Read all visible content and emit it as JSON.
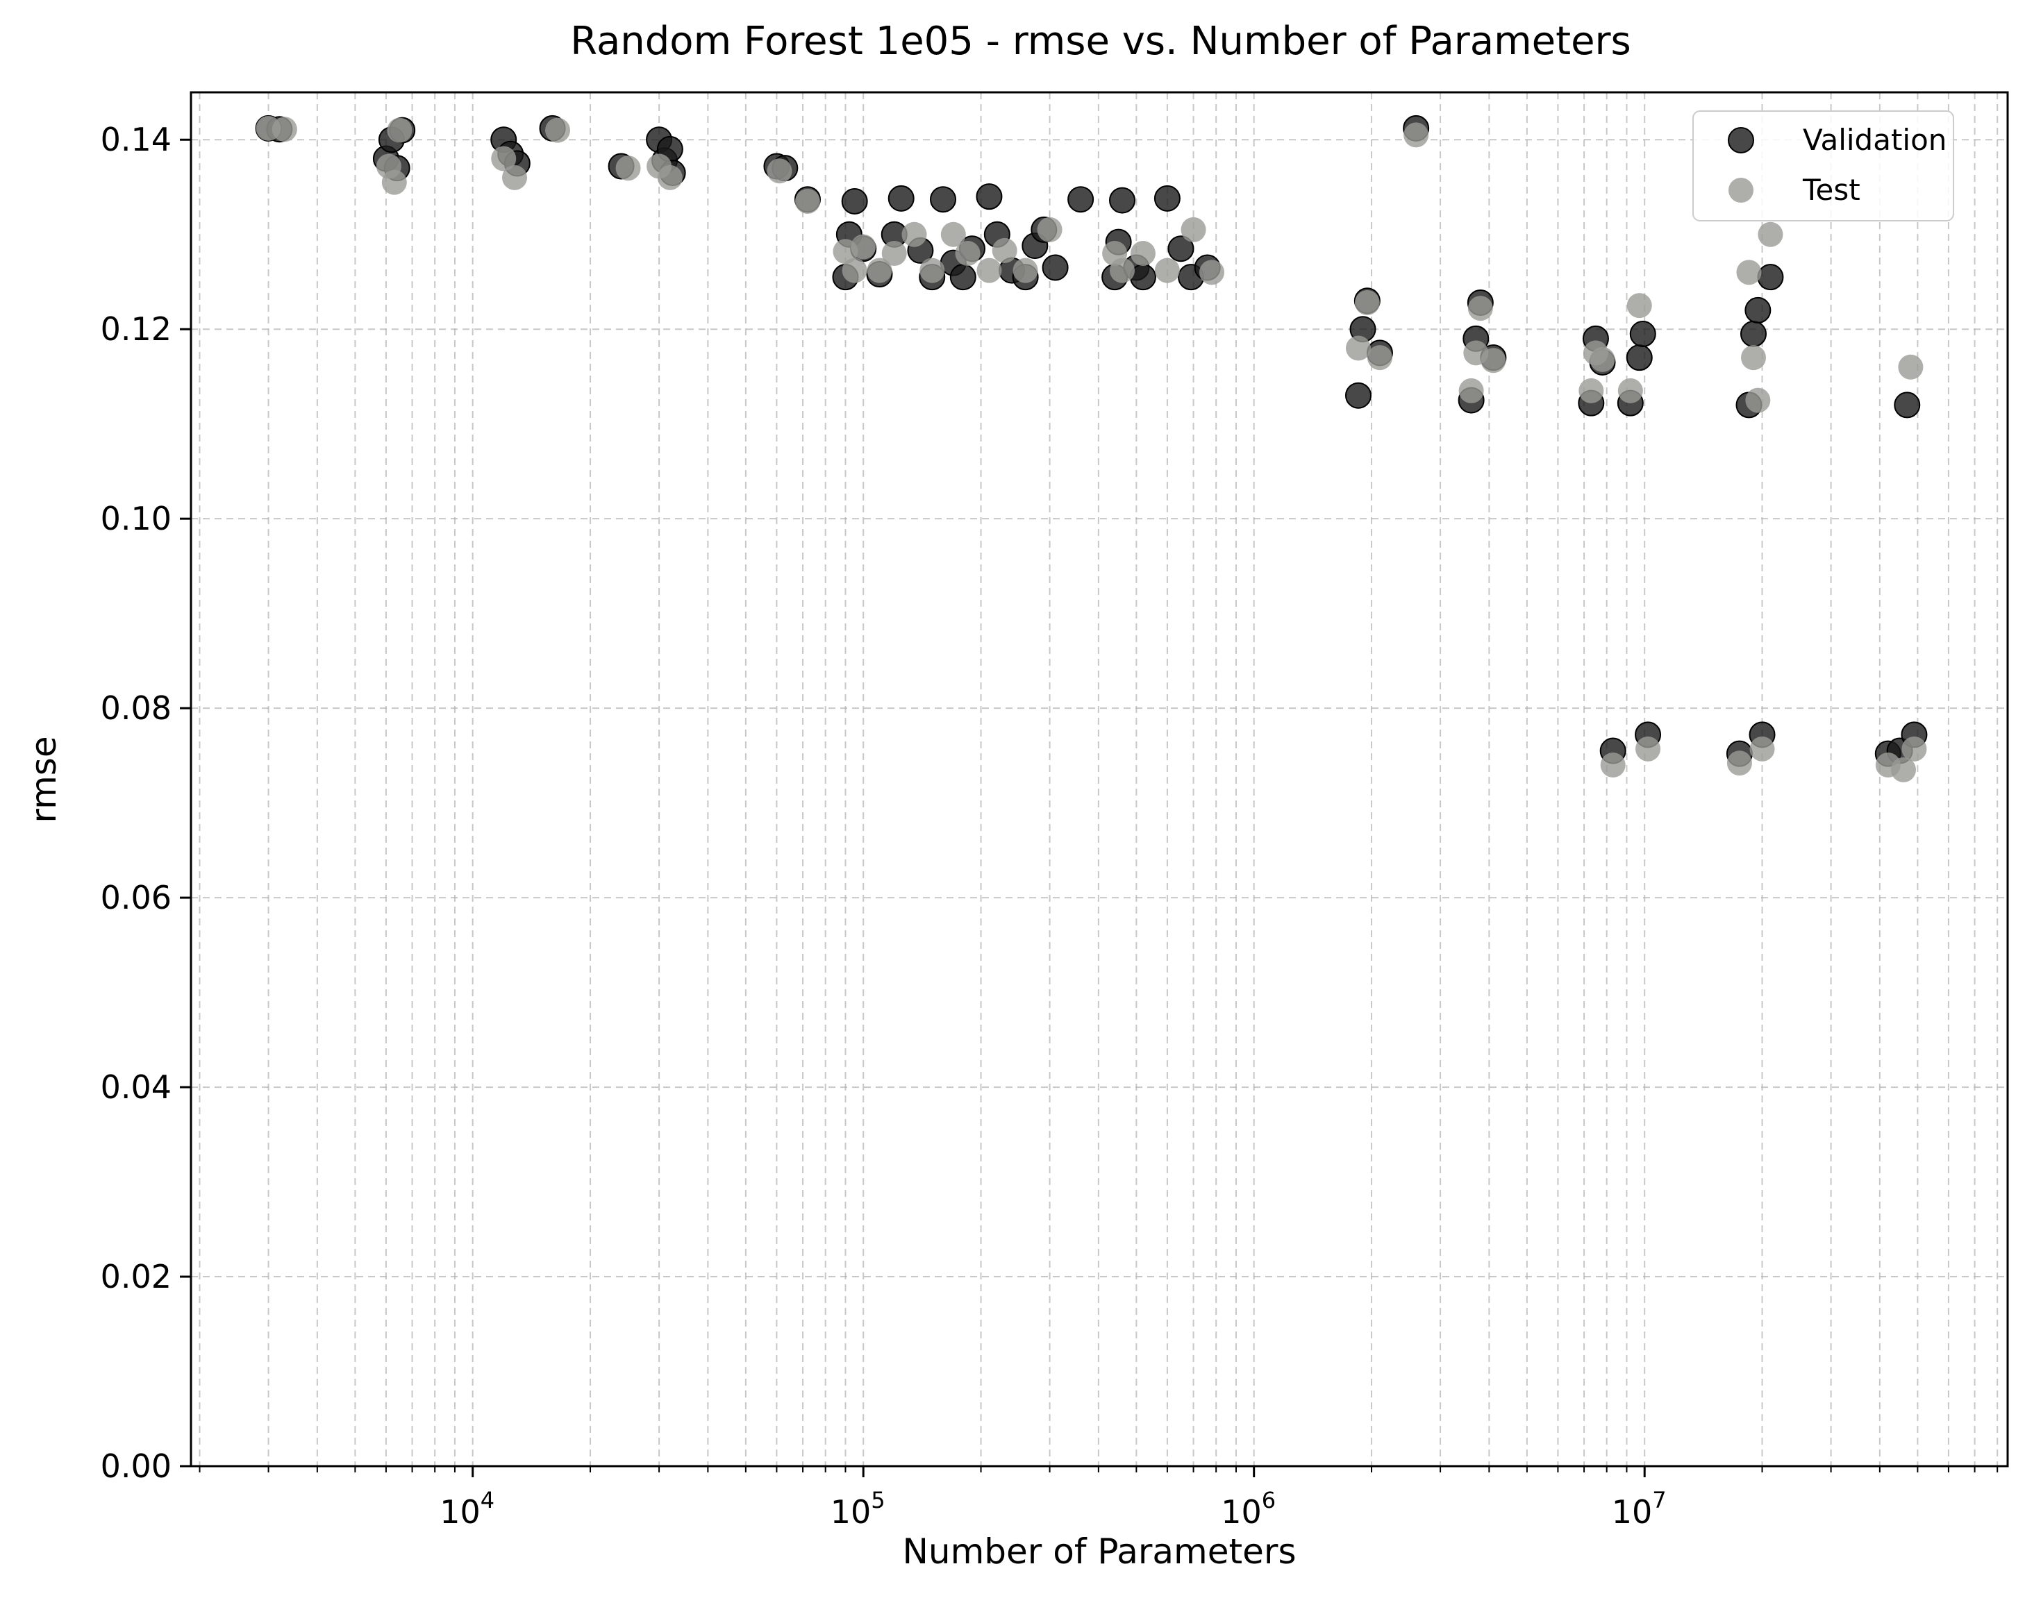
{
  "chart_data": {
    "type": "scatter",
    "title": "Random Forest 1e05 - rmse vs. Number of Parameters",
    "xlabel": "Number of Parameters",
    "ylabel": "rmse",
    "xscale": "log",
    "xlim": [
      1900,
      85000000
    ],
    "ylim": [
      0,
      0.145
    ],
    "grid": true,
    "legend_position": "top-right",
    "x_ticks": [
      {
        "value": 10000,
        "base": "10",
        "exp": "4"
      },
      {
        "value": 100000,
        "base": "10",
        "exp": "5"
      },
      {
        "value": 1000000,
        "base": "10",
        "exp": "6"
      },
      {
        "value": 10000000,
        "base": "10",
        "exp": "7"
      }
    ],
    "y_ticks": [
      "0.00",
      "0.02",
      "0.04",
      "0.06",
      "0.08",
      "0.10",
      "0.12",
      "0.14"
    ],
    "series": [
      {
        "name": "Validation",
        "color": "#1a1a1a",
        "x": [
          3000,
          3200,
          6000,
          6200,
          6400,
          6600,
          12000,
          12500,
          13000,
          16000,
          24000,
          30000,
          31000,
          32000,
          32500,
          60000,
          63000,
          72000,
          90000,
          92000,
          95000,
          100000,
          110000,
          120000,
          125000,
          140000,
          150000,
          160000,
          170000,
          180000,
          190000,
          210000,
          220000,
          240000,
          260000,
          275000,
          290000,
          310000,
          360000,
          440000,
          450000,
          460000,
          500000,
          520000,
          600000,
          650000,
          690000,
          760000,
          1850000,
          1900000,
          1950000,
          2100000,
          2600000,
          3600000,
          3700000,
          3800000,
          4100000,
          7300000,
          7500000,
          7800000,
          8300000,
          9200000,
          9700000,
          9900000,
          10200000,
          17500000,
          18500000,
          19000000,
          19500000,
          20000000,
          21000000,
          42000000,
          45000000,
          47000000,
          49000000
        ],
        "y": [
          0.1412,
          0.1411,
          0.138,
          0.14,
          0.137,
          0.141,
          0.14,
          0.1385,
          0.1375,
          0.1412,
          0.1372,
          0.14,
          0.1378,
          0.139,
          0.1365,
          0.1372,
          0.137,
          0.1337,
          0.1255,
          0.13,
          0.1335,
          0.1285,
          0.1258,
          0.13,
          0.1338,
          0.1283,
          0.1255,
          0.1337,
          0.127,
          0.1255,
          0.1285,
          0.134,
          0.13,
          0.1262,
          0.1255,
          0.1288,
          0.1305,
          0.1265,
          0.1337,
          0.1255,
          0.1292,
          0.1336,
          0.1265,
          0.1255,
          0.1338,
          0.1285,
          0.1255,
          0.1265,
          0.113,
          0.12,
          0.123,
          0.1175,
          0.1412,
          0.1125,
          0.119,
          0.1228,
          0.117,
          0.1122,
          0.119,
          0.1165,
          0.0755,
          0.1122,
          0.117,
          0.1195,
          0.0772,
          0.0752,
          0.112,
          0.1195,
          0.122,
          0.0772,
          0.1255,
          0.0752,
          0.0755,
          0.112,
          0.0772
        ]
      },
      {
        "name": "Test",
        "color": "#9a9a96",
        "x": [
          3000,
          3300,
          6100,
          6300,
          6500,
          12000,
          12800,
          16500,
          25000,
          30000,
          32000,
          61000,
          72000,
          90000,
          95000,
          100000,
          110000,
          120000,
          135000,
          150000,
          170000,
          185000,
          210000,
          230000,
          260000,
          300000,
          440000,
          460000,
          520000,
          600000,
          700000,
          780000,
          1850000,
          1950000,
          2100000,
          2600000,
          3600000,
          3700000,
          3800000,
          4100000,
          7300000,
          7500000,
          7800000,
          8300000,
          9200000,
          9700000,
          10200000,
          17500000,
          18500000,
          19000000,
          19500000,
          20000000,
          21000000,
          42000000,
          46000000,
          48000000,
          49000000
        ],
        "y": [
          0.1412,
          0.1411,
          0.1372,
          0.1355,
          0.141,
          0.138,
          0.136,
          0.141,
          0.137,
          0.1372,
          0.136,
          0.1367,
          0.1335,
          0.1282,
          0.1262,
          0.1287,
          0.1262,
          0.128,
          0.13,
          0.1262,
          0.13,
          0.128,
          0.1262,
          0.1283,
          0.1262,
          0.1305,
          0.128,
          0.1262,
          0.128,
          0.1262,
          0.1305,
          0.126,
          0.118,
          0.1228,
          0.117,
          0.1405,
          0.1135,
          0.1175,
          0.1222,
          0.1167,
          0.1135,
          0.1175,
          0.1168,
          0.074,
          0.1135,
          0.1225,
          0.0757,
          0.0742,
          0.126,
          0.117,
          0.1125,
          0.0757,
          0.13,
          0.074,
          0.0735,
          0.116,
          0.0757
        ]
      }
    ]
  }
}
